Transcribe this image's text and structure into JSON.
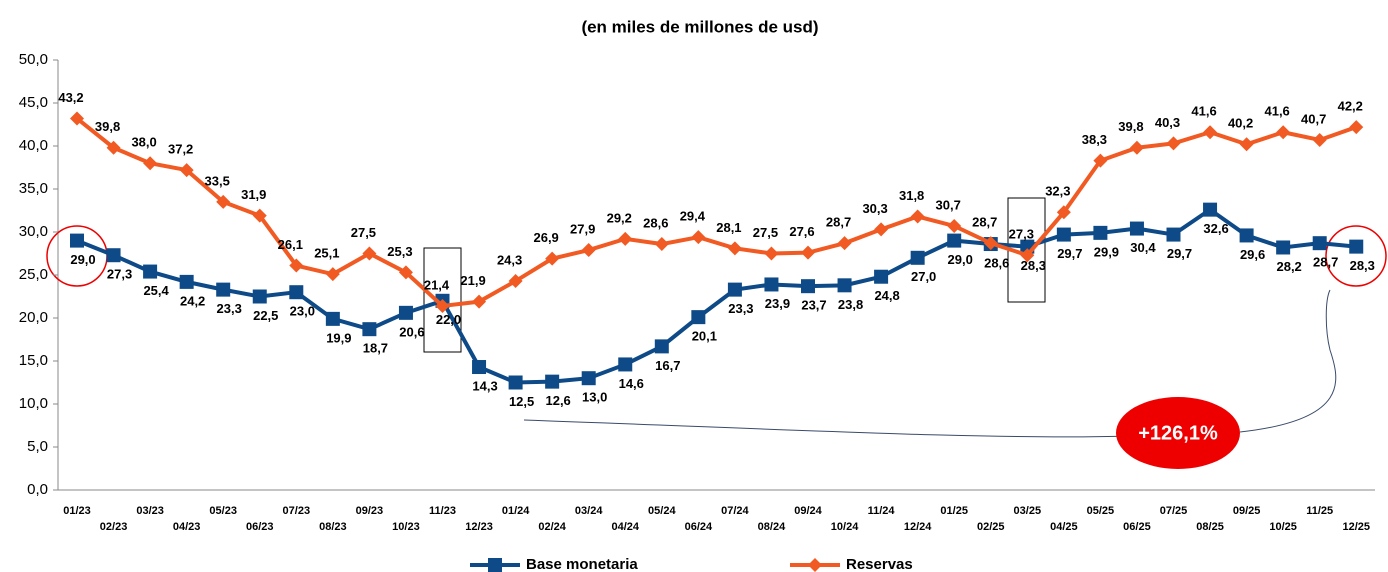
{
  "chart_data": {
    "type": "line",
    "title": "(en miles de millones de usd)",
    "categories": [
      "01/23",
      "02/23",
      "03/23",
      "04/23",
      "05/23",
      "06/23",
      "07/23",
      "08/23",
      "09/23",
      "10/23",
      "11/23",
      "12/23",
      "01/24",
      "02/24",
      "03/24",
      "04/24",
      "05/24",
      "06/24",
      "07/24",
      "08/24",
      "09/24",
      "10/24",
      "11/24",
      "12/24",
      "01/25",
      "02/25",
      "03/25",
      "04/25",
      "05/25",
      "06/25",
      "07/25",
      "08/25",
      "09/25",
      "10/25",
      "11/25",
      "12/25"
    ],
    "series": [
      {
        "name": "Base monetaria",
        "color": "#0d4a87",
        "marker": "square",
        "values": [
          29.0,
          27.3,
          25.4,
          24.2,
          23.3,
          22.5,
          23.0,
          19.9,
          18.7,
          20.6,
          22.0,
          14.3,
          12.5,
          12.6,
          13.0,
          14.6,
          16.7,
          20.1,
          23.3,
          23.9,
          23.7,
          23.8,
          24.8,
          27.0,
          29.0,
          28.6,
          28.3,
          29.7,
          29.9,
          30.4,
          29.7,
          32.6,
          29.6,
          28.2,
          28.7,
          28.3
        ],
        "value_labels": [
          "29,0",
          "27,3",
          "25,4",
          "24,2",
          "23,3",
          "22,5",
          "23,0",
          "19,9",
          "18,7",
          "20,6",
          "22,0",
          "14,3",
          "12,5",
          "12,6",
          "13,0",
          "14,6",
          "16,7",
          "20,1",
          "23,3",
          "23,9",
          "23,7",
          "23,8",
          "24,8",
          "27,0",
          "29,0",
          "28,6",
          "28,3",
          "29,7",
          "29,9",
          "30,4",
          "29,7",
          "32,6",
          "29,6",
          "28,2",
          "28,7",
          "28,3"
        ]
      },
      {
        "name": "Reservas",
        "color": "#f15a22",
        "marker": "diamond",
        "values": [
          43.2,
          39.8,
          38.0,
          37.2,
          33.5,
          31.9,
          26.1,
          25.1,
          27.5,
          25.3,
          21.4,
          21.9,
          24.3,
          26.9,
          27.9,
          29.2,
          28.6,
          29.4,
          28.1,
          27.5,
          27.6,
          28.7,
          30.3,
          31.8,
          30.7,
          28.7,
          27.3,
          32.3,
          38.3,
          39.8,
          40.3,
          41.6,
          40.2,
          41.6,
          40.7,
          42.2
        ],
        "value_labels": [
          "43,2",
          "39,8",
          "38,0",
          "37,2",
          "33,5",
          "31,9",
          "26,1",
          "25,1",
          "27,5",
          "25,3",
          "21,4",
          "21,9",
          "24,3",
          "26,9",
          "27,9",
          "29,2",
          "28,6",
          "29,4",
          "28,1",
          "27,5",
          "27,6",
          "28,7",
          "30,3",
          "31,8",
          "30,7",
          "28,7",
          "27,3",
          "32,3",
          "38,3",
          "39,8",
          "40,3",
          "41,6",
          "40,2",
          "41,6",
          "40,7",
          "42,2"
        ]
      }
    ],
    "ylim": [
      0,
      50
    ],
    "yticks": [
      {
        "value": 0,
        "label": "0,0"
      },
      {
        "value": 5,
        "label": "5,0"
      },
      {
        "value": 10,
        "label": "10,0"
      },
      {
        "value": 15,
        "label": "15,0"
      },
      {
        "value": 20,
        "label": "20,0"
      },
      {
        "value": 25,
        "label": "25,0"
      },
      {
        "value": 30,
        "label": "30,0"
      },
      {
        "value": 35,
        "label": "35,0"
      },
      {
        "value": 40,
        "label": "40,0"
      },
      {
        "value": 45,
        "label": "45,0"
      },
      {
        "value": 50,
        "label": "50,0"
      }
    ],
    "annotation": "+126,1%",
    "legend": "bottom"
  }
}
